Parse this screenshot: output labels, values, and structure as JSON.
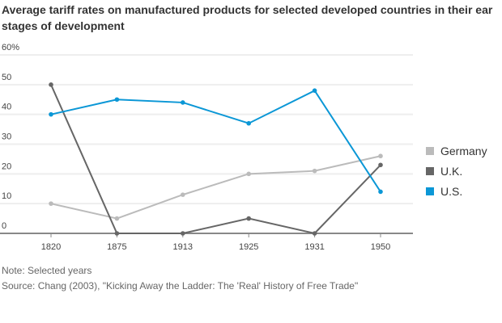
{
  "chart_data": {
    "type": "line",
    "title_lines": [
      "Average tariff rates on manufactured products for selected developed countries in their ear",
      "stages of development"
    ],
    "categories": [
      "1820",
      "1875",
      "1913",
      "1925",
      "1931",
      "1950"
    ],
    "y_ticks": [
      "0",
      "10",
      "20",
      "30",
      "40",
      "50",
      "60%"
    ],
    "ylim": [
      0,
      60
    ],
    "series": [
      {
        "name": "Germany",
        "color": "#bbbbbb",
        "values": [
          10,
          5,
          13,
          20,
          21,
          26
        ]
      },
      {
        "name": "U.K.",
        "color": "#666666",
        "values": [
          50,
          0,
          0,
          5,
          0,
          23
        ]
      },
      {
        "name": "U.S.",
        "color": "#0b97d6",
        "values": [
          40,
          45,
          44,
          37,
          48,
          14
        ]
      }
    ],
    "legend_position": "right",
    "note": "Note: Selected years",
    "source": "Source: Chang (2003), \"Kicking Away the Ladder: The 'Real' History of Free Trade\""
  }
}
